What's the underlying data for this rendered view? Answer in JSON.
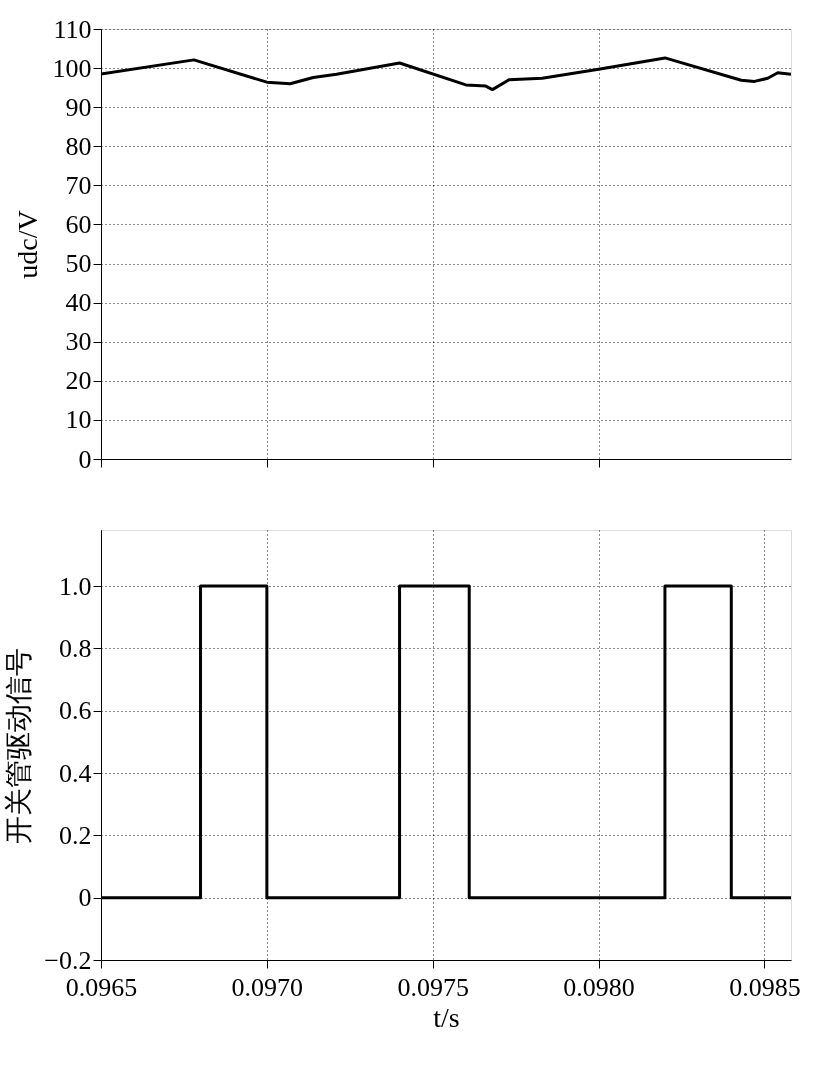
{
  "chart_data": [
    {
      "type": "line",
      "ylabel": "udc/V",
      "color": "#000000",
      "line_style": "solid",
      "grid": true,
      "tick_labels": "y",
      "x": [
        0.0965,
        0.09678,
        0.097,
        0.09707,
        0.09714,
        0.09721,
        0.0974,
        0.0976,
        0.09766,
        0.09768,
        0.09773,
        0.09783,
        0.098,
        0.0982,
        0.09843,
        0.09847,
        0.09851,
        0.09854,
        0.09858
      ],
      "values": [
        98.5,
        102.1,
        96.4,
        96.0,
        97.6,
        98.4,
        101.3,
        95.7,
        95.4,
        94.5,
        97.0,
        97.4,
        99.7,
        102.6,
        96.9,
        96.6,
        97.4,
        98.8,
        98.4
      ],
      "xlim": [
        0.0965,
        0.09858
      ],
      "xticks": [
        {
          "value": 0.0965,
          "label": null
        },
        {
          "value": 0.097,
          "label": null
        },
        {
          "value": 0.0975,
          "label": null
        },
        {
          "value": 0.098,
          "label": null
        }
      ],
      "ylim": [
        0,
        110
      ],
      "yticks": [
        0,
        10,
        20,
        30,
        40,
        50,
        60,
        70,
        80,
        90,
        100,
        110
      ]
    },
    {
      "type": "step",
      "xlabel": "t/s",
      "ylabel": "开关管驱动信号",
      "color": "#000000",
      "line_style": "solid",
      "grid": true,
      "x": [
        0.0965,
        0.0968,
        0.097,
        0.0974,
        0.09761,
        0.0982,
        0.0984,
        0.09858
      ],
      "values": [
        0,
        1,
        0,
        1,
        0,
        1,
        0,
        0
      ],
      "xlim": [
        0.0965,
        0.09858
      ],
      "xticks": [
        {
          "value": 0.0965,
          "label": "0.0965"
        },
        {
          "value": 0.097,
          "label": "0.0970"
        },
        {
          "value": 0.0975,
          "label": "0.0975"
        },
        {
          "value": 0.098,
          "label": "0.0980"
        },
        {
          "value": 0.0985,
          "label": "0.0985"
        }
      ],
      "ylim": [
        -0.2,
        1.18
      ],
      "yticks": [
        {
          "value": -0.2,
          "label": "−0.2"
        },
        0,
        {
          "value": 0.2,
          "label": "0.2"
        },
        {
          "value": 0.4,
          "label": "0.4"
        },
        {
          "value": 0.6,
          "label": "0.6"
        },
        {
          "value": 0.8,
          "label": "0.8"
        },
        {
          "value": 1.0,
          "label": "1.0"
        }
      ]
    }
  ]
}
